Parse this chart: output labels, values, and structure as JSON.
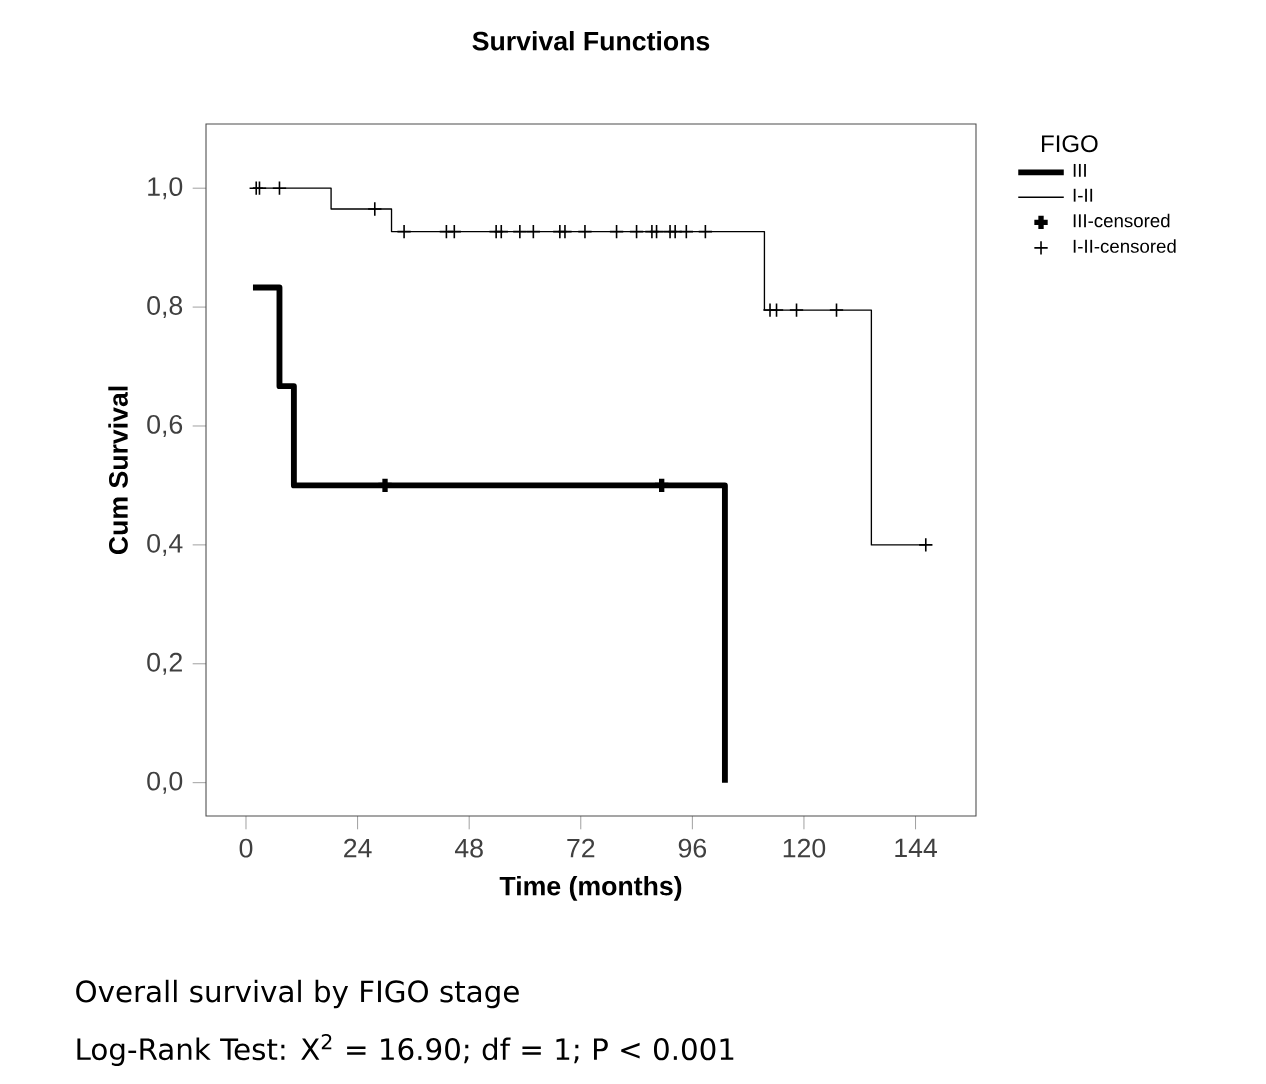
{
  "chart_data": {
    "type": "step",
    "title": "Survival Functions",
    "xlabel": "Time (months)",
    "ylabel": "Cum Survival",
    "legend_title": "FIGO",
    "legend": "top right",
    "xlim": [
      -8.6,
      157
    ],
    "ylim": [
      -0.056,
      1.108
    ],
    "xticks": [
      0,
      24,
      48,
      72,
      96,
      120,
      144
    ],
    "yticks": [
      {
        "value": 0,
        "label": "0,0"
      },
      {
        "value": 0.2,
        "label": "0,2"
      },
      {
        "value": 0.4,
        "label": "0,4"
      },
      {
        "value": 0.6,
        "label": "0,6"
      },
      {
        "value": 0.8,
        "label": "0,8"
      },
      {
        "value": 1,
        "label": "1,0"
      }
    ],
    "series": [
      {
        "name": "III",
        "color": "#000000",
        "x": [
          1.5,
          7.2,
          10.3,
          103
        ],
        "values": [
          0.833,
          0.667,
          0.5,
          0
        ]
      },
      {
        "name": "I-II",
        "color": "#000000",
        "x": [
          1.5,
          18.3,
          31.3,
          111.5,
          134.5,
          146.2
        ],
        "values": [
          1,
          0.965,
          0.927,
          0.795,
          0.4,
          0.4
        ]
      },
      {
        "name": "III-censored",
        "type": "scatter",
        "color": "#000000",
        "marker": "cross",
        "x": [
          29.9,
          89.4
        ],
        "values": [
          0.5,
          0.5
        ]
      },
      {
        "name": "I-II-censored",
        "type": "scatter",
        "color": "#000000",
        "marker": "cross",
        "x": [
          2.2,
          2.9,
          7.2,
          27.7,
          34.0,
          43.1,
          44.8,
          53.8,
          54.9,
          58.9,
          61.8,
          67.5,
          68.6,
          72.9,
          79.7,
          84.0,
          87.3,
          88.3,
          91.2,
          92.3,
          94.7,
          98.8,
          112.7,
          114.1,
          118.4,
          127.0,
          146.2
        ],
        "values": [
          1,
          1,
          1,
          0.965,
          0.927,
          0.927,
          0.927,
          0.927,
          0.927,
          0.927,
          0.927,
          0.927,
          0.927,
          0.927,
          0.927,
          0.927,
          0.927,
          0.927,
          0.927,
          0.927,
          0.927,
          0.927,
          0.795,
          0.795,
          0.795,
          0.795,
          0.4
        ]
      }
    ],
    "annotations": [
      "Overall survival by FIGO stage",
      "Log-Rank Test: X$^{2}$ = 16.90; df = 1; P < 0.001"
    ]
  }
}
